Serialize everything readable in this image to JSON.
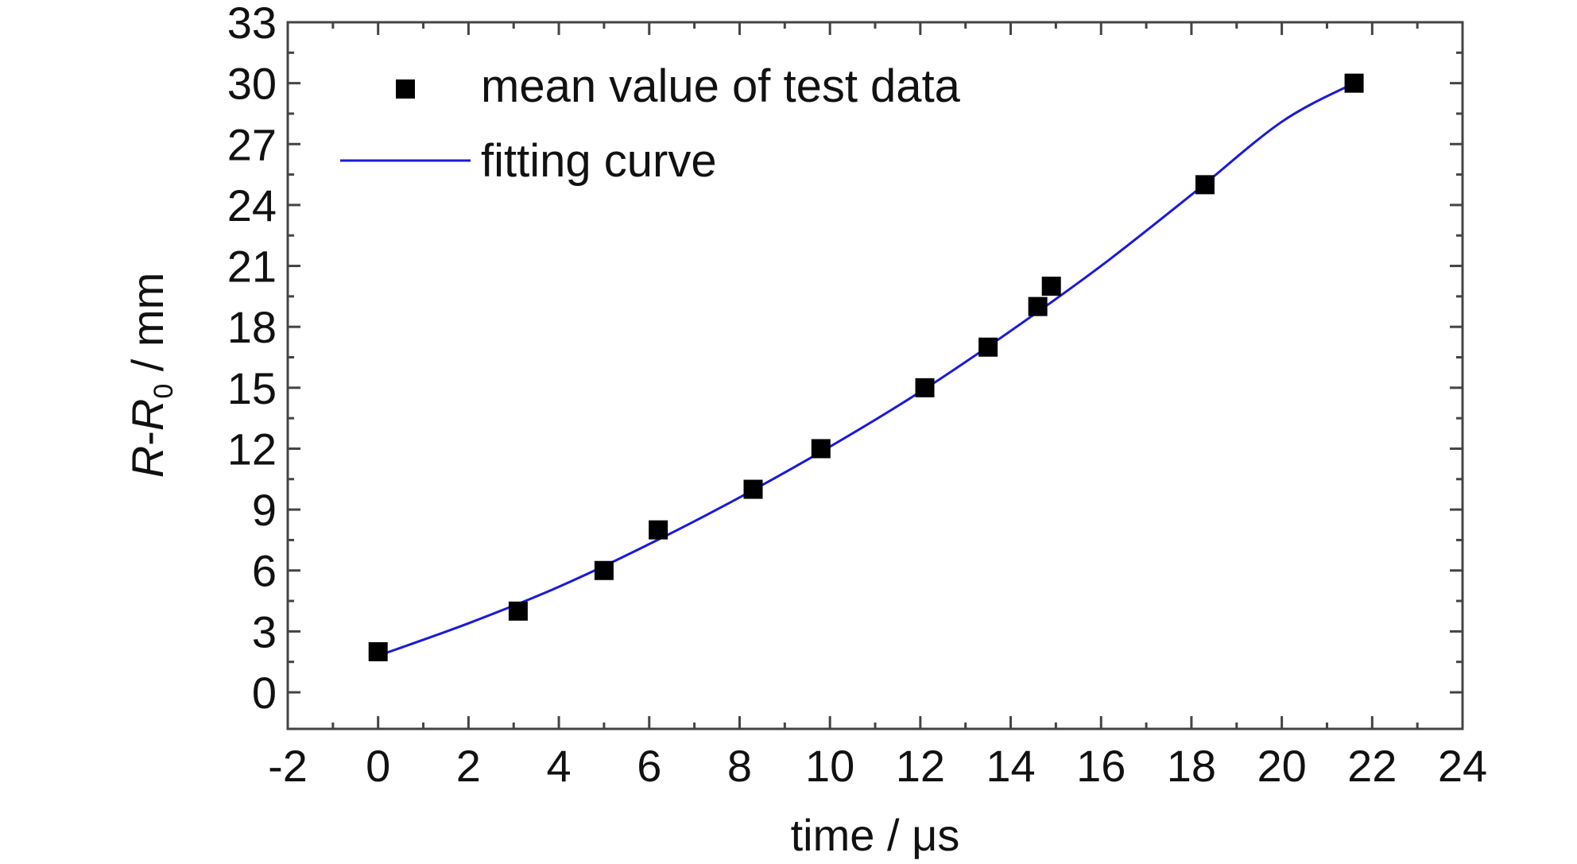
{
  "chart_data": {
    "type": "scatter",
    "xlabel": "time / μs",
    "ylabel_parts": {
      "r": "R",
      "dash": "-",
      "r0": "R",
      "sub": "0",
      "unit": " / mm"
    },
    "xlim": [
      -2,
      24
    ],
    "ylim": [
      -1.8,
      33
    ],
    "x_ticks": [
      -2,
      0,
      2,
      4,
      6,
      8,
      10,
      12,
      14,
      16,
      18,
      20,
      22,
      24
    ],
    "y_ticks": [
      0,
      3,
      6,
      9,
      12,
      15,
      18,
      21,
      24,
      27,
      30,
      33
    ],
    "grid": false,
    "legend_position": "top-left",
    "series": [
      {
        "name": "mean value of test data",
        "kind": "markers",
        "marker": "square",
        "color": "#000000",
        "x": [
          0,
          3.1,
          5.0,
          6.2,
          8.3,
          9.8,
          12.1,
          13.5,
          14.6,
          14.9,
          18.3,
          21.6
        ],
        "y": [
          2,
          4,
          6,
          8,
          10,
          12,
          15,
          17,
          19,
          20,
          25,
          30
        ]
      },
      {
        "name": "fitting curve",
        "kind": "line",
        "color": "#1a1adb",
        "x": [
          0,
          2,
          4,
          6,
          8,
          10,
          12,
          14,
          16,
          18,
          20,
          21.6
        ],
        "y": [
          1.8,
          3.4,
          5.2,
          7.3,
          9.6,
          12.1,
          14.8,
          17.8,
          21.0,
          24.5,
          28.1,
          30.0
        ]
      }
    ]
  }
}
